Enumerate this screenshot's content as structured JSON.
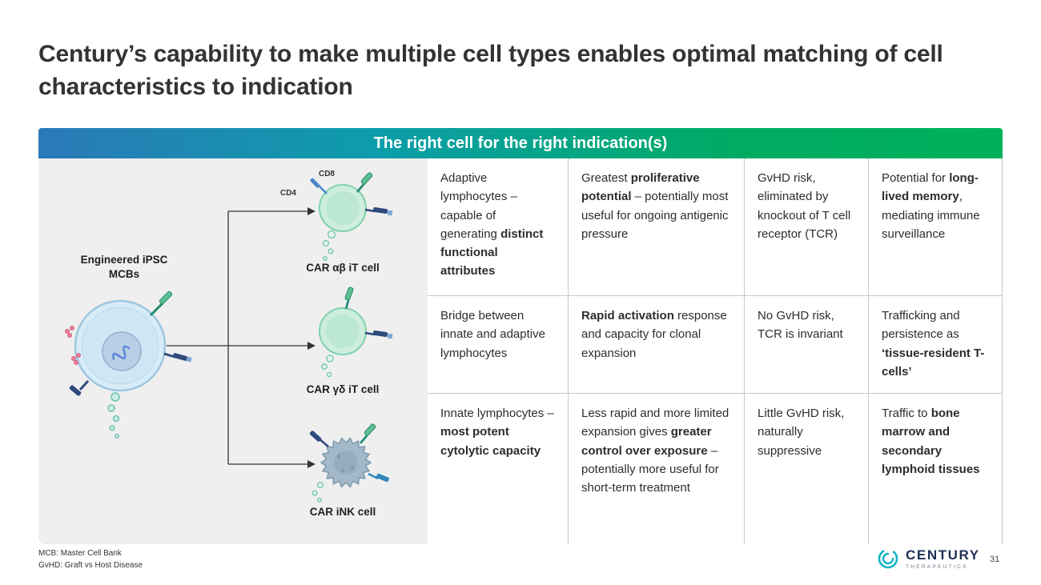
{
  "slide": {
    "title": "Century’s capability to make multiple cell types enables optimal matching of cell characteristics to indication",
    "banner": "The right cell for the right indication(s)",
    "page_number": "31"
  },
  "colors": {
    "banner_gradient_start": "#2b79b8",
    "banner_gradient_mid": "#0d9dab",
    "banner_gradient_end": "#00b15a",
    "panel_background": "#efefef",
    "logo_teal": "#12b2c4",
    "logo_navy": "#1e2f55"
  },
  "diagram": {
    "source_label": "Engineered iPSC\nMCBs",
    "cd4": "CD4",
    "cd8": "CD8",
    "cell_labels": [
      "CAR αβ iT cell",
      "CAR γδ iT cell",
      "CAR iNK cell"
    ]
  },
  "table": {
    "rows": [
      [
        [
          {
            "t": "Adaptive lymphocytes – capable of generating "
          },
          {
            "t": "distinct functional attributes",
            "b": true
          }
        ],
        [
          {
            "t": "Greatest "
          },
          {
            "t": "proliferative potential",
            "b": true
          },
          {
            "t": " – potentially most useful for ongoing antigenic pressure"
          }
        ],
        [
          {
            "t": "GvHD risk, eliminated by knockout of T cell receptor (TCR)"
          }
        ],
        [
          {
            "t": "Potential for "
          },
          {
            "t": "long-lived memory",
            "b": true
          },
          {
            "t": ", mediating immune surveillance"
          }
        ]
      ],
      [
        [
          {
            "t": "Bridge between innate and adaptive lymphocytes"
          }
        ],
        [
          {
            "t": "Rapid activation",
            "b": true
          },
          {
            "t": " response and capacity for clonal expansion"
          }
        ],
        [
          {
            "t": "No GvHD risk, TCR is invariant"
          }
        ],
        [
          {
            "t": "Trafficking and persistence as "
          },
          {
            "t": "‘tissue-resident T-cells’",
            "b": true
          }
        ]
      ],
      [
        [
          {
            "t": "Innate lymphocytes – "
          },
          {
            "t": "most potent cytolytic capacity",
            "b": true
          }
        ],
        [
          {
            "t": "Less rapid and more limited expansion gives "
          },
          {
            "t": "greater control over exposure",
            "b": true
          },
          {
            "t": " – potentially more useful for short-term treatment"
          }
        ],
        [
          {
            "t": "Little GvHD risk, naturally suppressive"
          }
        ],
        [
          {
            "t": "Traffic to "
          },
          {
            "t": "bone marrow and secondary lymphoid tissues",
            "b": true
          }
        ]
      ]
    ]
  },
  "footnotes": [
    "MCB: Master Cell Bank",
    "GvHD: Graft vs Host Disease"
  ],
  "logo": {
    "name": "CENTURY",
    "sub": "THERAPEUTICS"
  }
}
